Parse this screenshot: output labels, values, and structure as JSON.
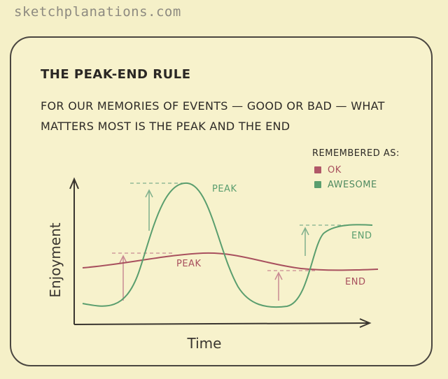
{
  "site": "sketchplanations.com",
  "title": "THE PEAK-END RULE",
  "subtitle_line1": "FOR OUR MEMORIES OF EVENTS — GOOD OR BAD — WHAT",
  "subtitle_line2": "MATTERS MOST IS THE PEAK AND THE END",
  "legend": {
    "title": "REMEMBERED AS:",
    "items": [
      {
        "label": "OK",
        "color": "#b05868"
      },
      {
        "label": "AWESOME",
        "color": "#5a9e6e"
      }
    ]
  },
  "axes": {
    "x_label": "Time",
    "y_label": "Enjoyment"
  },
  "curves": {
    "green": {
      "peak_label": "PEAK",
      "end_label": "END",
      "color": "#5a9e6e"
    },
    "red": {
      "peak_label": "PEAK",
      "end_label": "END",
      "color": "#a8505e"
    }
  }
}
